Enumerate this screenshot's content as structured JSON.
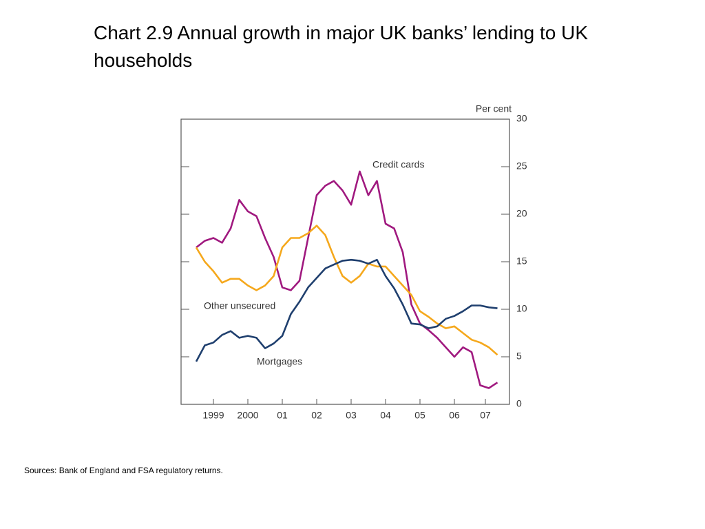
{
  "chart_data": {
    "type": "line",
    "title": "Chart 2.9  Annual growth in major UK banks’ lending to UK households",
    "y_label": "Per cent",
    "source": "Sources:  Bank of England and FSA regulatory returns.",
    "x": [
      1999,
      1999.25,
      1999.5,
      1999.75,
      2000,
      2000.25,
      2000.5,
      2000.75,
      2001,
      2001.25,
      2001.5,
      2001.75,
      2002,
      2002.25,
      2002.5,
      2002.75,
      2003,
      2003.25,
      2003.5,
      2003.75,
      2004,
      2004.25,
      2004.5,
      2004.75,
      2005,
      2005.25,
      2005.5,
      2005.75,
      2006,
      2006.25,
      2006.5,
      2006.75,
      2007,
      2007.25,
      2007.5,
      2007.75
    ],
    "series": [
      {
        "name": "Credit cards",
        "color": "#a0197f",
        "values": [
          16.5,
          17.2,
          17.5,
          17.0,
          18.5,
          21.5,
          20.3,
          19.8,
          17.5,
          15.5,
          12.3,
          12.0,
          13.0,
          17.5,
          22.0,
          23.0,
          23.5,
          22.5,
          21.0,
          24.5,
          22.0,
          23.5,
          19.0,
          18.5,
          16.0,
          10.5,
          8.5,
          7.8,
          7.0,
          6.0,
          5.0,
          6.0,
          5.5,
          2.0,
          1.7,
          2.3
        ]
      },
      {
        "name": "Other unsecured",
        "color": "#f5a81c",
        "values": [
          16.5,
          15.0,
          14.0,
          12.8,
          13.2,
          13.2,
          12.5,
          12.0,
          12.5,
          13.5,
          16.5,
          17.5,
          17.5,
          18.0,
          18.8,
          17.8,
          15.5,
          13.5,
          12.8,
          13.5,
          14.8,
          14.5,
          14.5,
          13.5,
          12.5,
          11.5,
          9.8,
          9.2,
          8.5,
          8.0,
          8.2,
          7.5,
          6.8,
          6.5,
          6.0,
          5.2
        ]
      },
      {
        "name": "Mortgages",
        "color": "#1f3f6e",
        "values": [
          4.5,
          6.2,
          6.5,
          7.3,
          7.7,
          7.0,
          7.2,
          7.0,
          5.9,
          6.4,
          7.2,
          9.5,
          10.8,
          12.3,
          13.3,
          14.3,
          14.7,
          15.1,
          15.2,
          15.1,
          14.8,
          15.2,
          13.5,
          12.2,
          10.5,
          8.5,
          8.4,
          8.0,
          8.2,
          9.0,
          9.3,
          9.8,
          10.4,
          10.4,
          10.2,
          10.1
        ]
      }
    ],
    "xlim": [
      1998.56,
      2008.1
    ],
    "xticks": [
      {
        "value": 1999.5,
        "label": "1999"
      },
      {
        "value": 2000.5,
        "label": "2000"
      },
      {
        "value": 2001.5,
        "label": "01"
      },
      {
        "value": 2002.5,
        "label": "02"
      },
      {
        "value": 2003.5,
        "label": "03"
      },
      {
        "value": 2004.5,
        "label": "04"
      },
      {
        "value": 2005.5,
        "label": "05"
      },
      {
        "value": 2006.5,
        "label": "06"
      },
      {
        "value": 2007.4,
        "label": "07"
      }
    ],
    "ylim": [
      0,
      30
    ],
    "yticks": [
      0,
      5,
      10,
      15,
      20,
      25,
      30
    ],
    "grid": false
  }
}
